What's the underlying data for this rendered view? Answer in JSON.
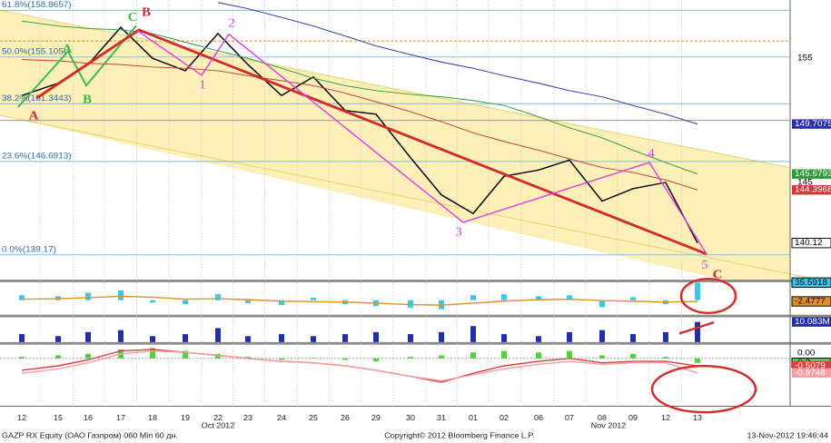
{
  "chart_data": [
    {
      "type": "line",
      "categories": [
        "12",
        "15",
        "16",
        "17",
        "18",
        "19",
        "22",
        "23",
        "24",
        "25",
        "26",
        "29",
        "30",
        "31",
        "01",
        "02",
        "06",
        "07",
        "08",
        "09",
        "12",
        "13"
      ],
      "month_labels": [
        "Oct 2012",
        "Nov 2012"
      ],
      "series": [
        {
          "color": "#000000",
          "values": [
            152.0,
            153.0,
            154.5,
            157.5,
            155.0,
            154.0,
            157.0,
            154.5,
            152.0,
            153.5,
            150.8,
            150.5,
            147.0,
            144.0,
            142.5,
            145.5,
            146.0,
            146.8,
            143.5,
            144.5,
            145.0,
            140.12
          ]
        },
        {
          "color": "#2a2fb0",
          "values": [
            null,
            null,
            null,
            null,
            null,
            null,
            159.5,
            159.0,
            158.3,
            157.6,
            156.8,
            156.0,
            155.3,
            154.7,
            154.2,
            153.6,
            153.0,
            152.4,
            151.9,
            151.2,
            150.5,
            149.7075
          ]
        },
        {
          "color": "#2e9b36",
          "values": [
            158.0,
            157.6,
            157.4,
            157.3,
            157.0,
            156.3,
            155.6,
            155.0,
            154.2,
            153.4,
            152.8,
            152.4,
            152.1,
            151.9,
            151.6,
            151.2,
            150.3,
            149.4,
            148.6,
            147.6,
            146.6,
            145.6793
          ]
        },
        {
          "color": "#c83a3a",
          "values": [
            154.9,
            154.8,
            154.6,
            154.5,
            154.3,
            154.2,
            154.0,
            153.6,
            153.2,
            152.8,
            152.2,
            151.5,
            150.7,
            149.9,
            149.0,
            148.3,
            147.6,
            146.9,
            146.2,
            145.8,
            145.2,
            144.3968
          ]
        }
      ],
      "ylim": [
        137.1,
        159.7
      ],
      "yticks": [
        145,
        155
      ],
      "fib_levels": [
        {
          "value": 158.8657,
          "label": "61.8%(158.8657)"
        },
        {
          "value": 155.105,
          "label": "50.0%(155.105)"
        },
        {
          "value": 151.3443,
          "label": "38.2%(151.3443)"
        },
        {
          "value": 146.6913,
          "label": "23.6%(146.6913)"
        },
        {
          "value": 139.17,
          "label": "0.0%(139.17)"
        }
      ],
      "reference_lines": [
        {
          "value": 156.4,
          "color": "#e0902a"
        },
        {
          "value": 150.0,
          "color": "#9a9a9a"
        }
      ],
      "wave_labels": {
        "red": [
          "A",
          "B",
          "C"
        ],
        "green": [
          "A",
          "B",
          "C"
        ],
        "magenta": [
          "1",
          "2",
          "3",
          "4",
          "5"
        ]
      },
      "callout": "C"
    },
    {
      "type": "bar",
      "color": "#3cc7e8",
      "values": [
        10,
        8,
        15,
        20,
        -5,
        -8,
        12,
        -6,
        -10,
        5,
        -8,
        -12,
        -15,
        -18,
        10,
        12,
        8,
        10,
        -14,
        6,
        -8,
        35.5918
      ],
      "lines": [
        {
          "color": "#e0902a",
          "values": [
            2,
            3,
            5,
            8,
            6,
            2,
            3,
            1,
            -2,
            -3,
            -4,
            -6,
            -9,
            -10,
            -6,
            -2,
            1,
            2,
            -1,
            -2,
            -4,
            -2.4777
          ]
        }
      ],
      "ylim": [
        -29.4,
        36.3
      ]
    },
    {
      "type": "bar",
      "color": "#1f2fa8",
      "values": [
        4,
        3,
        5,
        6,
        3,
        4,
        7,
        3,
        4,
        3,
        4,
        5,
        4,
        5,
        8,
        4,
        3,
        5,
        6,
        4,
        5,
        10.083
      ],
      "value_labels": [
        null,
        null,
        null,
        null,
        null,
        null,
        null,
        null,
        null,
        null,
        null,
        null,
        null,
        null,
        null,
        null,
        null,
        null,
        null,
        null,
        null,
        "10.083M"
      ],
      "ylim": [
        0,
        12
      ]
    },
    {
      "type": "bar",
      "color": "#4cd43a",
      "values": [
        0.1,
        0.2,
        0.3,
        0.6,
        0.7,
        0.5,
        0.3,
        0.1,
        -0.1,
        0.05,
        -0.1,
        -0.2,
        0.1,
        0.2,
        0.4,
        0.5,
        0.4,
        0.5,
        0.2,
        0.3,
        0.1,
        -0.3
      ],
      "lines": [
        {
          "color": "#d94040",
          "values": [
            -0.8,
            -0.5,
            -0.1,
            0.5,
            0.6,
            0.4,
            0.2,
            0.0,
            -0.2,
            -0.3,
            -0.5,
            -0.8,
            -1.2,
            -1.6,
            -1.0,
            -0.5,
            -0.2,
            0.0,
            -0.3,
            -0.2,
            -0.2,
            -0.5079
          ]
        },
        {
          "color": "#f4a0a0",
          "values": [
            -1.0,
            -0.7,
            -0.3,
            0.3,
            0.5,
            0.4,
            0.2,
            0.0,
            -0.2,
            -0.3,
            -0.5,
            -0.8,
            -1.2,
            -1.5,
            -1.1,
            -0.7,
            -0.4,
            -0.2,
            -0.4,
            -0.3,
            -0.3,
            -0.9748
          ]
        }
      ],
      "ylim": [
        -2.92,
        0.92
      ],
      "yticks": [
        {
          "value": 0,
          "label": "0.00"
        }
      ]
    }
  ],
  "footer": {
    "left": "GAZP RX Equity (ОАО Газпром) 060 Min 60 дн.",
    "center": "Copyright© 2012 Bloomberg Finance L.P.",
    "right": "13-Nov-2012 19:46:44"
  }
}
